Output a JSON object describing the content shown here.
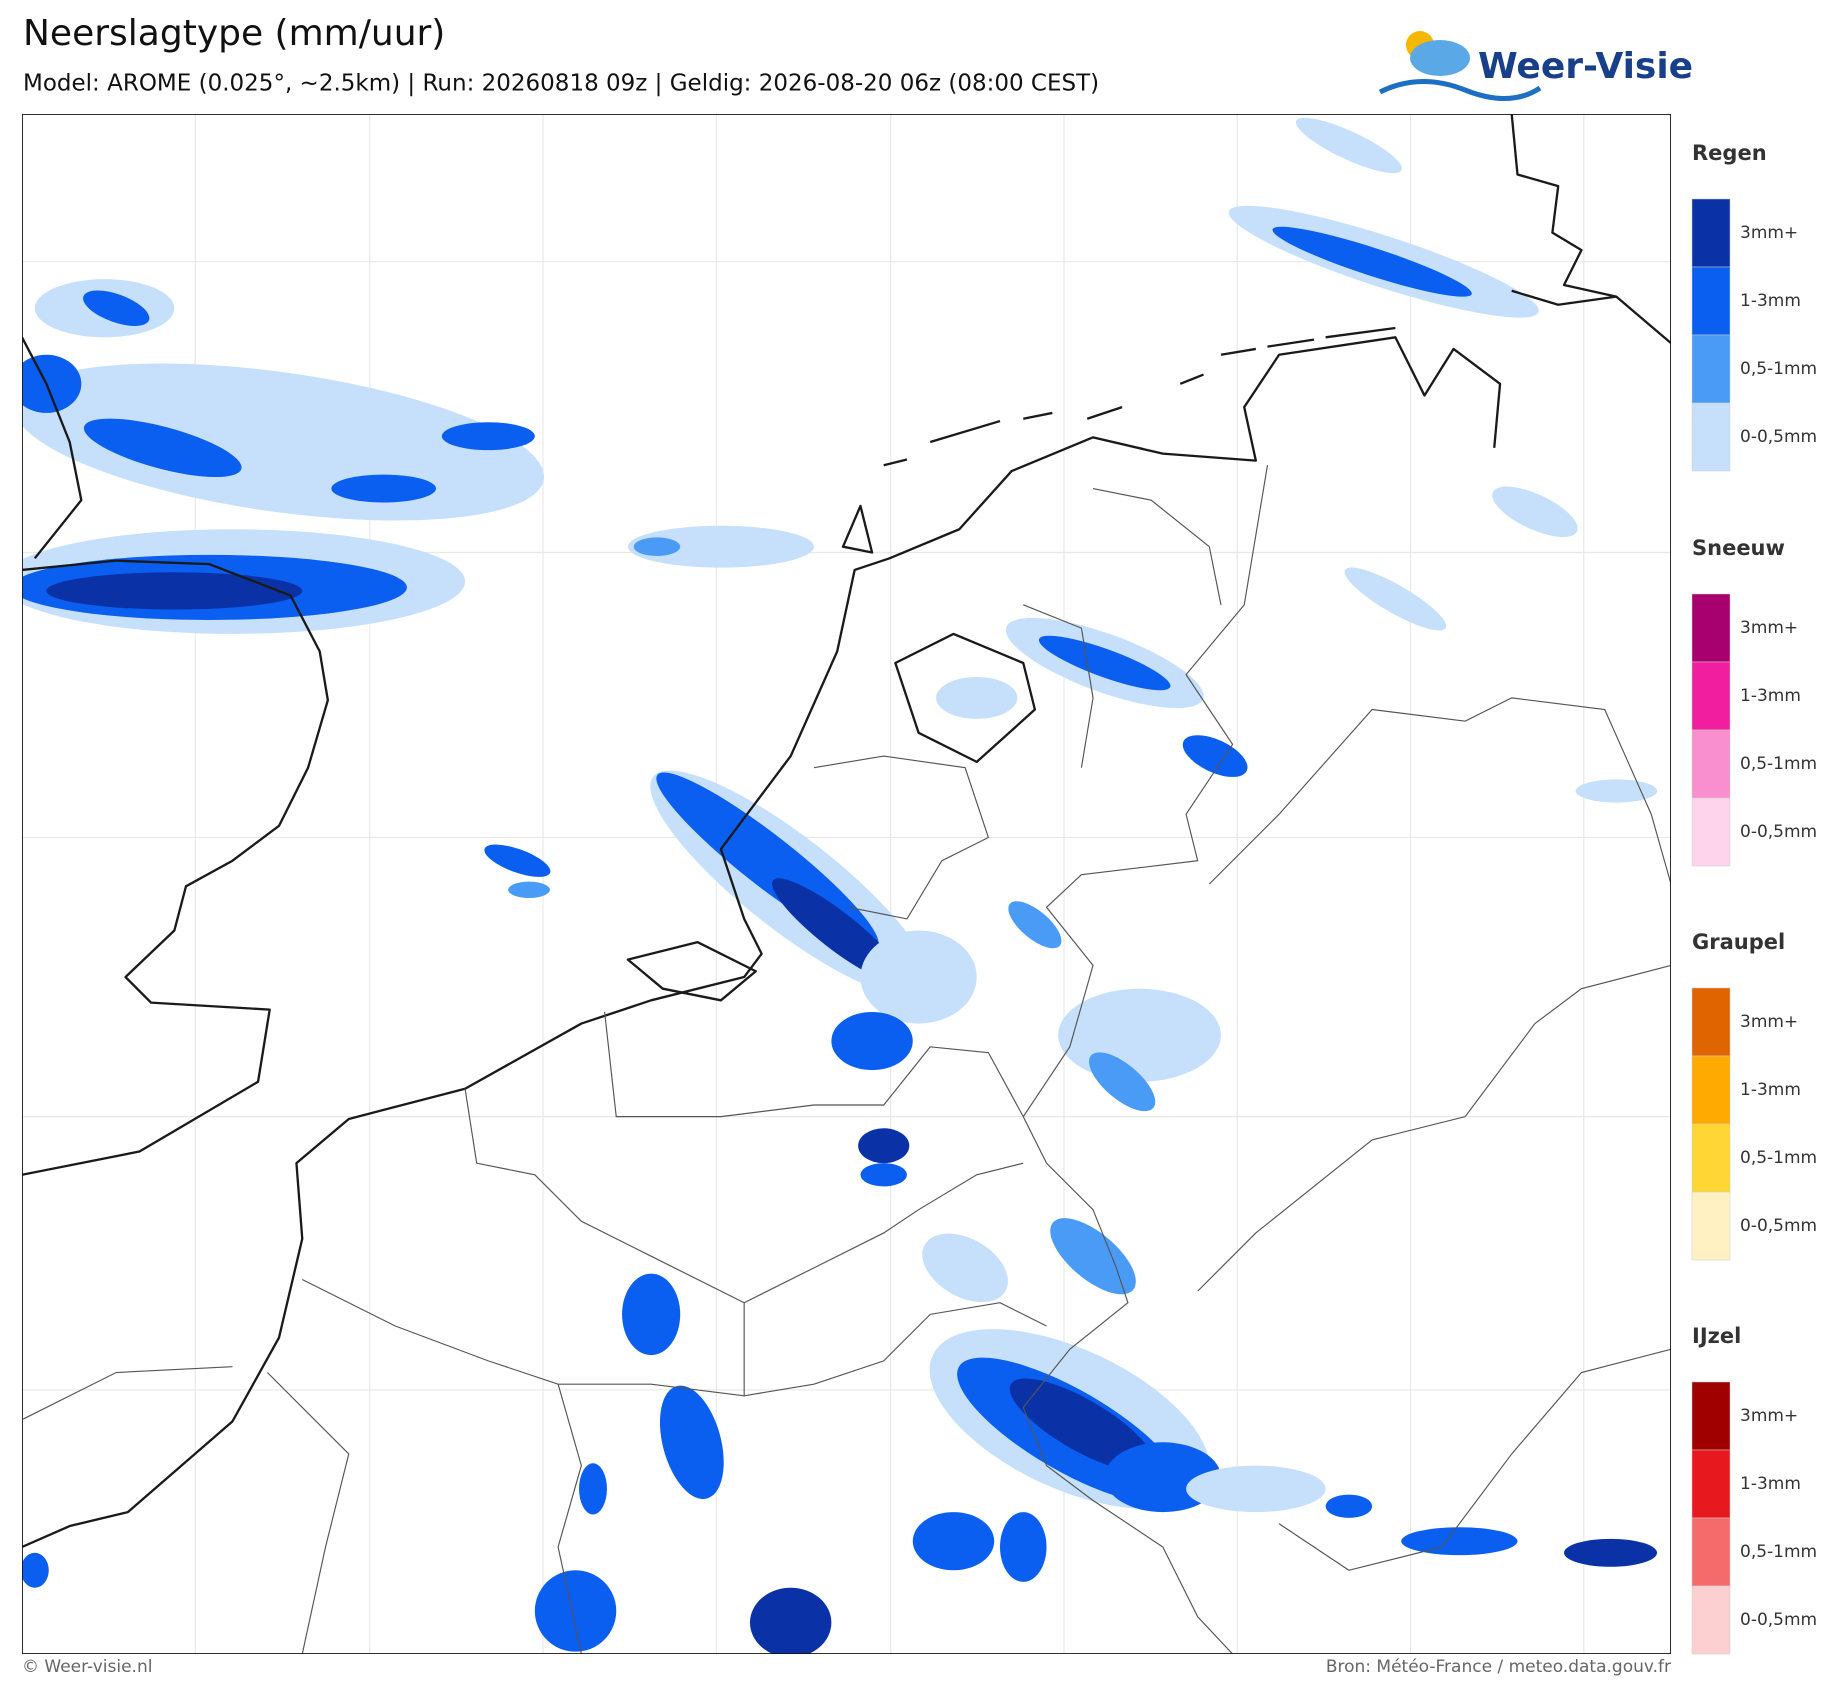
{
  "header": {
    "title": "Neerslagtype (mm/uur)",
    "subtitle": "Model: AROME (0.025°, ~2.5km)  |  Run: 20260818 09z  |  Geldig: 2026-08-20 06z (08:00 CEST)",
    "logo": "Weer-Visie"
  },
  "legend": [
    {
      "title": "Regen",
      "items": [
        {
          "label": "3mm+",
          "color": "#0a31a6"
        },
        {
          "label": "1-3mm",
          "color": "#0a5ef0"
        },
        {
          "label": "0,5-1mm",
          "color": "#4a9bf5"
        },
        {
          "label": "0-0,5mm",
          "color": "#c6e0fb"
        }
      ]
    },
    {
      "title": "Sneeuw",
      "items": [
        {
          "label": "3mm+",
          "color": "#a8006e"
        },
        {
          "label": "1-3mm",
          "color": "#f21ea0"
        },
        {
          "label": "0,5-1mm",
          "color": "#f98fcf"
        },
        {
          "label": "0-0,5mm",
          "color": "#fdd4ec"
        }
      ]
    },
    {
      "title": "Graupel",
      "items": [
        {
          "label": "3mm+",
          "color": "#e06400"
        },
        {
          "label": "1-3mm",
          "color": "#ffaa00"
        },
        {
          "label": "0,5-1mm",
          "color": "#ffd633"
        },
        {
          "label": "0-0,5mm",
          "color": "#fff1c2"
        }
      ]
    },
    {
      "title": "IJzel",
      "items": [
        {
          "label": "3mm+",
          "color": "#a00000"
        },
        {
          "label": "1-3mm",
          "color": "#e8191e"
        },
        {
          "label": "0,5-1mm",
          "color": "#f56b6b"
        },
        {
          "label": "0-0,5mm",
          "color": "#fcd0d0"
        }
      ]
    }
  ],
  "footer": {
    "left": "© Weer-visie.nl",
    "right": "Bron: Météo-France / meteo.data.gouv.fr"
  }
}
